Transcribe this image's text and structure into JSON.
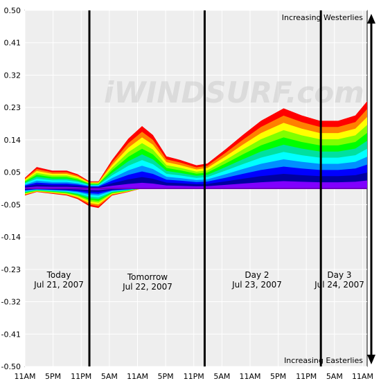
{
  "chart_data": {
    "type": "area",
    "title": "",
    "ylim": [
      -0.5,
      0.5
    ],
    "y_ticks": [
      "0.50",
      "0.41",
      "0.32",
      "0.23",
      "0.14",
      "0.05",
      "-0.05",
      "-0.14",
      "-0.23",
      "-0.32",
      "-0.41",
      "-0.50"
    ],
    "x_ticks": [
      "11AM",
      "5PM",
      "11PM",
      "5AM",
      "11AM",
      "5PM",
      "11PM",
      "5AM",
      "11AM",
      "5PM",
      "11PM",
      "5AM",
      "11AM"
    ],
    "grid": true,
    "annotations": {
      "top": "Increasing Westerlies",
      "bottom": "Increasing Easterlies"
    },
    "watermark": "iWINDSURF.com",
    "days": [
      {
        "name": "Today",
        "date": "Jul 21, 2007"
      },
      {
        "name": "Tomorrow",
        "date": "Jul 22, 2007"
      },
      {
        "name": "Day 2",
        "date": "Jul 23, 2007"
      },
      {
        "name": "Day 3",
        "date": "Jul 24, 2007"
      }
    ],
    "colors": [
      "#ff0000",
      "#ff8000",
      "#ffff00",
      "#80ff00",
      "#00ff00",
      "#00e0a0",
      "#00ffff",
      "#0090ff",
      "#0000ff",
      "#0000a0",
      "#8000ff"
    ],
    "top_envelope": [
      [
        0,
        0.03
      ],
      [
        1.3,
        0.06
      ],
      [
        3,
        0.05
      ],
      [
        4.6,
        0.05
      ],
      [
        5.8,
        0.04
      ],
      [
        7.1,
        0.02
      ],
      [
        8.1,
        0.02
      ],
      [
        9.6,
        0.08
      ],
      [
        11.4,
        0.14
      ],
      [
        12.9,
        0.175
      ],
      [
        14.1,
        0.15
      ],
      [
        15.6,
        0.09
      ],
      [
        17.1,
        0.08
      ],
      [
        18.9,
        0.065
      ],
      [
        20.1,
        0.07
      ],
      [
        22.1,
        0.11
      ],
      [
        24,
        0.15
      ],
      [
        26,
        0.19
      ],
      [
        28.5,
        0.225
      ],
      [
        30.5,
        0.205
      ],
      [
        32.5,
        0.19
      ],
      [
        34.5,
        0.19
      ],
      [
        36.4,
        0.205
      ],
      [
        37.7,
        0.245
      ]
    ],
    "bottom_envelope": [
      [
        0,
        -0.02
      ],
      [
        1.3,
        -0.01
      ],
      [
        3,
        -0.015
      ],
      [
        4.6,
        -0.02
      ],
      [
        5.8,
        -0.03
      ],
      [
        7.1,
        -0.05
      ],
      [
        8.1,
        -0.055
      ],
      [
        9.6,
        -0.02
      ],
      [
        11.4,
        -0.01
      ],
      [
        12.9,
        0
      ],
      [
        14.1,
        0
      ],
      [
        15.6,
        0
      ],
      [
        17.1,
        0
      ],
      [
        18.9,
        0
      ],
      [
        20.1,
        0
      ],
      [
        22.1,
        0
      ],
      [
        24,
        0
      ],
      [
        26,
        0
      ],
      [
        28.5,
        0
      ],
      [
        30.5,
        0
      ],
      [
        32.5,
        0
      ],
      [
        34.5,
        0
      ],
      [
        36.4,
        0
      ],
      [
        37.7,
        0
      ]
    ]
  }
}
